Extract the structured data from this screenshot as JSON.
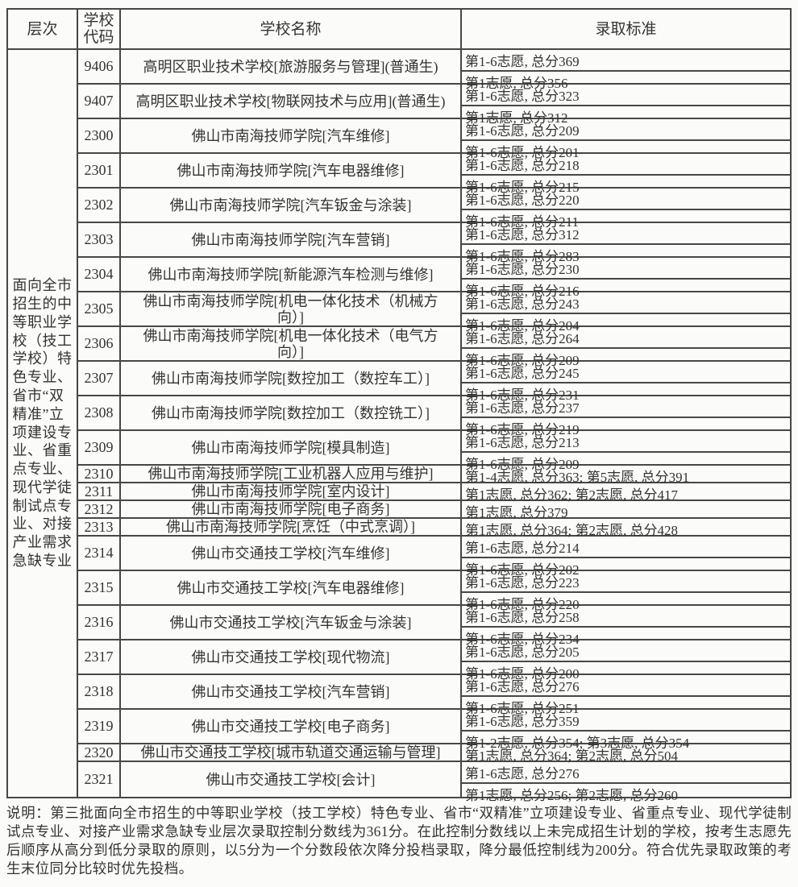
{
  "table": {
    "headers": {
      "level": "层次",
      "code": "学校\n代码",
      "name": "学校名称",
      "criteria": "录取标准"
    },
    "level_text": "面向全市\n招生的中\n等职业学\n校（技工\n学校）特\n色专业、\n省市“双\n精准”立\n项建设专\n业、省重\n点专业、\n现代学徒\n制试点专\n业、对接\n产业需求\n急缺专业",
    "rows": [
      {
        "code": "9406",
        "name": "高明区职业技术学校[旅游服务与管理](普通生)",
        "criteria": [
          "第1-6志愿, 总分369",
          "第1志愿, 总分356"
        ]
      },
      {
        "code": "9407",
        "name": "高明区职业技术学校[物联网技术与应用](普通生)",
        "criteria": [
          "第1-6志愿, 总分323",
          "第1志愿, 总分312"
        ]
      },
      {
        "code": "2300",
        "name": "佛山市南海技师学院[汽车维修]",
        "criteria": [
          "第1-6志愿, 总分209",
          "第1-6志愿, 总分201"
        ]
      },
      {
        "code": "2301",
        "name": "佛山市南海技师学院[汽车电器维修]",
        "criteria": [
          "第1-6志愿, 总分218",
          "第1-6志愿, 总分215"
        ]
      },
      {
        "code": "2302",
        "name": "佛山市南海技师学院[汽车钣金与涂装]",
        "criteria": [
          "第1-6志愿, 总分220",
          "第1-6志愿, 总分211"
        ]
      },
      {
        "code": "2303",
        "name": "佛山市南海技师学院[汽车营销]",
        "criteria": [
          "第1-6志愿, 总分312",
          "第1-6志愿, 总分283"
        ]
      },
      {
        "code": "2304",
        "name": "佛山市南海技师学院[新能源汽车检测与维修]",
        "criteria": [
          "第1-6志愿, 总分230",
          "第1-6志愿, 总分216"
        ]
      },
      {
        "code": "2305",
        "name": "佛山市南海技师学院[机电一体化技术（机械方\n向）]",
        "criteria": [
          "第1-6志愿, 总分243",
          "第1-6志愿, 总分204"
        ]
      },
      {
        "code": "2306",
        "name": "佛山市南海技师学院[机电一体化技术（电气方\n向）]",
        "criteria": [
          "第1-6志愿, 总分264",
          "第1-6志愿, 总分209"
        ]
      },
      {
        "code": "2307",
        "name": "佛山市南海技师学院[数控加工（数控车工）]",
        "criteria": [
          "第1-6志愿, 总分245",
          "第1-6志愿, 总分231"
        ]
      },
      {
        "code": "2308",
        "name": "佛山市南海技师学院[数控加工（数控铣工）]",
        "criteria": [
          "第1-6志愿, 总分237",
          "第1-6志愿, 总分219"
        ]
      },
      {
        "code": "2309",
        "name": "佛山市南海技师学院[模具制造]",
        "criteria": [
          "第1-6志愿, 总分213",
          "第1-6志愿, 总分209"
        ]
      },
      {
        "code": "2310",
        "name": "佛山市南海技师学院[工业机器人应用与维护]",
        "criteria": [
          "第1-4志愿, 总分363; 第5志愿, 总分391"
        ]
      },
      {
        "code": "2311",
        "name": "佛山市南海技师学院[室内设计]",
        "criteria": [
          "第1志愿, 总分362; 第2志愿, 总分417"
        ]
      },
      {
        "code": "2312",
        "name": "佛山市南海技师学院[电子商务]",
        "criteria": [
          "第1志愿, 总分379"
        ]
      },
      {
        "code": "2313",
        "name": "佛山市南海技师学院[烹饪（中式烹调）]",
        "criteria": [
          "第1志愿, 总分364; 第2志愿, 总分428"
        ]
      },
      {
        "code": "2314",
        "name": "佛山市交通技工学校[汽车维修]",
        "criteria": [
          "第1-6志愿, 总分214",
          "第1-6志愿, 总分202"
        ]
      },
      {
        "code": "2315",
        "name": "佛山市交通技工学校[汽车电器维修]",
        "criteria": [
          "第1-6志愿, 总分223",
          "第1-6志愿, 总分220"
        ]
      },
      {
        "code": "2316",
        "name": "佛山市交通技工学校[汽车钣金与涂装]",
        "criteria": [
          "第1-6志愿, 总分258",
          "第1-6志愿, 总分234"
        ]
      },
      {
        "code": "2317",
        "name": "佛山市交通技工学校[现代物流]",
        "criteria": [
          "第1-6志愿, 总分205",
          "第1-6志愿, 总分200"
        ]
      },
      {
        "code": "2318",
        "name": "佛山市交通技工学校[汽车营销]",
        "criteria": [
          "第1-6志愿, 总分276",
          "第1-6志愿, 总分251"
        ]
      },
      {
        "code": "2319",
        "name": "佛山市交通技工学校[电子商务]",
        "criteria": [
          "第1-6志愿, 总分359",
          "第1-2志愿, 总分354; 第3志愿, 总分354"
        ]
      },
      {
        "code": "2320",
        "name": "佛山市交通技工学校[城市轨道交通运输与管理]",
        "criteria": [
          "第1志愿, 总分364; 第2志愿, 总分504"
        ]
      },
      {
        "code": "2321",
        "name": "佛山市交通技工学校[会计]",
        "criteria": [
          "第1-6志愿, 总分276",
          "第1志愿, 总分256; 第2志愿, 总分260"
        ]
      }
    ]
  },
  "note": "说明：第三批面向全市招生的中等职业学校（技工学校）特色专业、省市“双精准”立项建设专业、省重点专业、现代学徒制试点专业、对接产业需求急缺专业层次录取控制分数线为361分。在此控制分数线以上未完成招生计划的学校，按考生志愿先后顺序从高分到低分录取的原则，以5分为一个分数段依次降分投档录取，降分最低控制线为200分。符合优先录取政策的考生末位同分比较时优先投档。",
  "colors": {
    "border": "#474747",
    "text": "#333333",
    "background": "#fbfbf9"
  }
}
